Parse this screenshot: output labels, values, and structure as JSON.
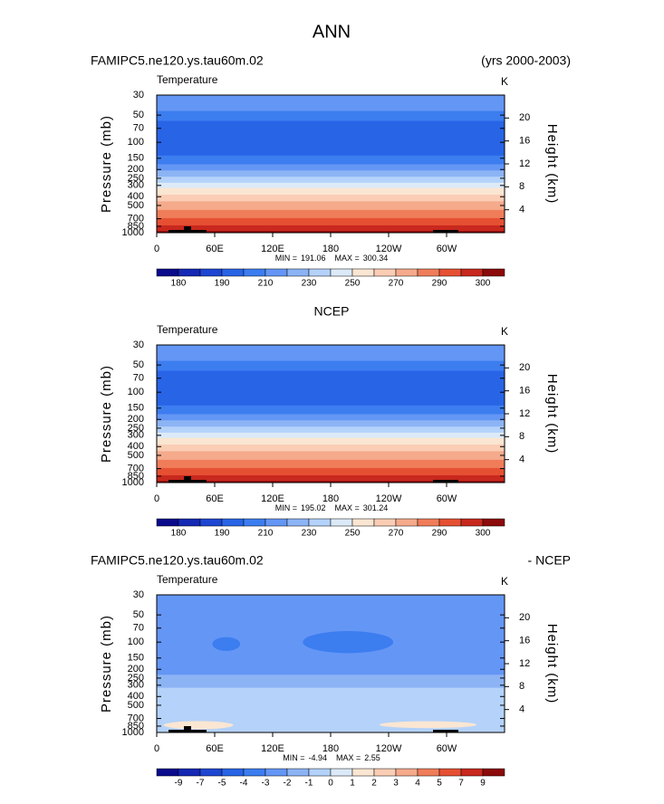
{
  "title": "ANN",
  "chart_data": [
    {
      "type": "contour",
      "title_left": "FAMIPC5.ne120.ys.tau60m.02",
      "title_right": "(yrs 2000-2003)",
      "variable": "Temperature",
      "units": "K",
      "y_label": "Pressure (mb)",
      "y2_label": "Height (km)",
      "ylim": [
        1000,
        30
      ],
      "log_y": true,
      "yticks": [
        30,
        50,
        70,
        100,
        150,
        200,
        250,
        300,
        400,
        500,
        700,
        850,
        1000
      ],
      "y2lim": [
        0,
        24
      ],
      "y2ticks": [
        4,
        8,
        12,
        16,
        20
      ],
      "xlim": [
        0,
        360
      ],
      "xticks": [
        0,
        {
          "value": 60,
          "label": "60E"
        },
        {
          "value": 120,
          "label": "120E"
        },
        180,
        {
          "value": 240,
          "label": "120W"
        },
        {
          "value": 300,
          "label": "60W"
        }
      ],
      "min_text": "MIN =",
      "min": 191.06,
      "max_text": "MAX =",
      "max": 300.34,
      "colorbar": {
        "labels": [
          180,
          190,
          210,
          230,
          250,
          270,
          290,
          300
        ],
        "colors": [
          "#0a0a8c",
          "#1428b4",
          "#1e46d2",
          "#2864e6",
          "#3c7df0",
          "#6496f5",
          "#8cb4f5",
          "#b4d2fa",
          "#dceaf8",
          "#fae6d2",
          "#facdb4",
          "#f5aa8c",
          "#f07d5a",
          "#e65032",
          "#c8281e",
          "#8c0a0a"
        ]
      }
    },
    {
      "type": "contour",
      "title": "NCEP",
      "variable": "Temperature",
      "units": "K",
      "y_label": "Pressure (mb)",
      "y2_label": "Height (km)",
      "ylim": [
        1000,
        30
      ],
      "log_y": true,
      "yticks": [
        30,
        50,
        70,
        100,
        150,
        200,
        250,
        300,
        400,
        500,
        700,
        850,
        1000
      ],
      "y2lim": [
        0,
        24
      ],
      "y2ticks": [
        4,
        8,
        12,
        16,
        20
      ],
      "xlim": [
        0,
        360
      ],
      "xticks": [
        0,
        {
          "value": 60,
          "label": "60E"
        },
        {
          "value": 120,
          "label": "120E"
        },
        180,
        {
          "value": 240,
          "label": "120W"
        },
        {
          "value": 300,
          "label": "60W"
        }
      ],
      "min_text": "MIN =",
      "min": 195.02,
      "max_text": "MAX =",
      "max": 301.24,
      "colorbar": {
        "labels": [
          180,
          190,
          210,
          230,
          250,
          270,
          290,
          300
        ],
        "colors": [
          "#0a0a8c",
          "#1428b4",
          "#1e46d2",
          "#2864e6",
          "#3c7df0",
          "#6496f5",
          "#8cb4f5",
          "#b4d2fa",
          "#dceaf8",
          "#fae6d2",
          "#facdb4",
          "#f5aa8c",
          "#f07d5a",
          "#e65032",
          "#c8281e",
          "#8c0a0a"
        ]
      }
    },
    {
      "type": "contour",
      "title_left": "FAMIPC5.ne120.ys.tau60m.02",
      "title_right": "- NCEP",
      "variable": "Temperature",
      "units": "K",
      "y_label": "Pressure (mb)",
      "y2_label": "Height (km)",
      "ylim": [
        1000,
        30
      ],
      "log_y": true,
      "yticks": [
        30,
        50,
        70,
        100,
        150,
        200,
        250,
        300,
        400,
        500,
        700,
        850,
        1000
      ],
      "y2lim": [
        0,
        24
      ],
      "y2ticks": [
        4,
        8,
        12,
        16,
        20
      ],
      "xlim": [
        0,
        360
      ],
      "xticks": [
        0,
        {
          "value": 60,
          "label": "60E"
        },
        {
          "value": 120,
          "label": "120E"
        },
        180,
        {
          "value": 240,
          "label": "120W"
        },
        {
          "value": 300,
          "label": "60W"
        }
      ],
      "min_text": "MIN =",
      "min": -4.94,
      "max_text": "MAX =",
      "max": 2.55,
      "colorbar": {
        "labels": [
          -9,
          -7,
          -5,
          -4,
          -3,
          -2,
          -1,
          0,
          1,
          2,
          3,
          4,
          5,
          7,
          9
        ],
        "colors": [
          "#0a0a8c",
          "#1428b4",
          "#1e46d2",
          "#2864e6",
          "#3c7df0",
          "#6496f5",
          "#8cb4f5",
          "#b4d2fa",
          "#dceaf8",
          "#fae6d2",
          "#facdb4",
          "#f5aa8c",
          "#f07d5a",
          "#e65032",
          "#c8281e",
          "#8c0a0a"
        ]
      }
    }
  ]
}
